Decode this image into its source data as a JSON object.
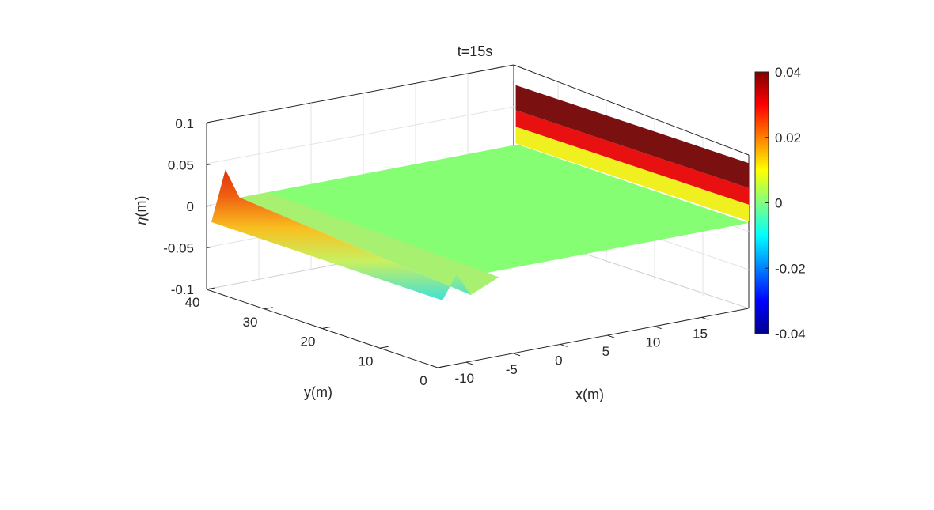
{
  "chart_data": {
    "type": "surface",
    "title": "t=15s",
    "xlabel": "x(m)",
    "ylabel": "y(m)",
    "zlabel_symbol": "η",
    "zlabel_unit": "(m)",
    "xlim": [
      -13,
      20
    ],
    "ylim": [
      0,
      40
    ],
    "zlim": [
      -0.1,
      0.1
    ],
    "x_ticks": [
      -10,
      -5,
      0,
      5,
      10,
      15
    ],
    "x_tick_labels": [
      "-10",
      "-5",
      "0",
      "5",
      "10",
      "15"
    ],
    "y_ticks": [
      0,
      10,
      20,
      30,
      40
    ],
    "y_tick_labels": [
      "0",
      "10",
      "20",
      "30",
      "40"
    ],
    "z_ticks": [
      -0.1,
      -0.05,
      0,
      0.05,
      0.1
    ],
    "z_tick_labels": [
      "-0.1",
      "-0.05",
      "0",
      "0.05",
      "0.1"
    ],
    "grid": true,
    "colormap": "jet",
    "colorbar": {
      "clim": [
        -0.04,
        0.04
      ],
      "ticks": [
        -0.04,
        -0.02,
        0,
        0.02,
        0.04
      ],
      "tick_labels": [
        "-0.04",
        "-0.02",
        "0",
        "0.02",
        "0.04"
      ],
      "placement": "right"
    },
    "surface": {
      "wave_crest_x": -11,
      "wave_height": 0.04,
      "wave_trough": -0.02,
      "flat_level": 0.003,
      "wall_x": 20,
      "wall_bands": [
        {
          "z_from": 0.005,
          "z_to": 0.025,
          "color": "#f0f020"
        },
        {
          "z_from": 0.025,
          "z_to": 0.045,
          "color": "#e81010"
        },
        {
          "z_from": 0.045,
          "z_to": 0.075,
          "color": "#7a1010"
        }
      ]
    }
  }
}
